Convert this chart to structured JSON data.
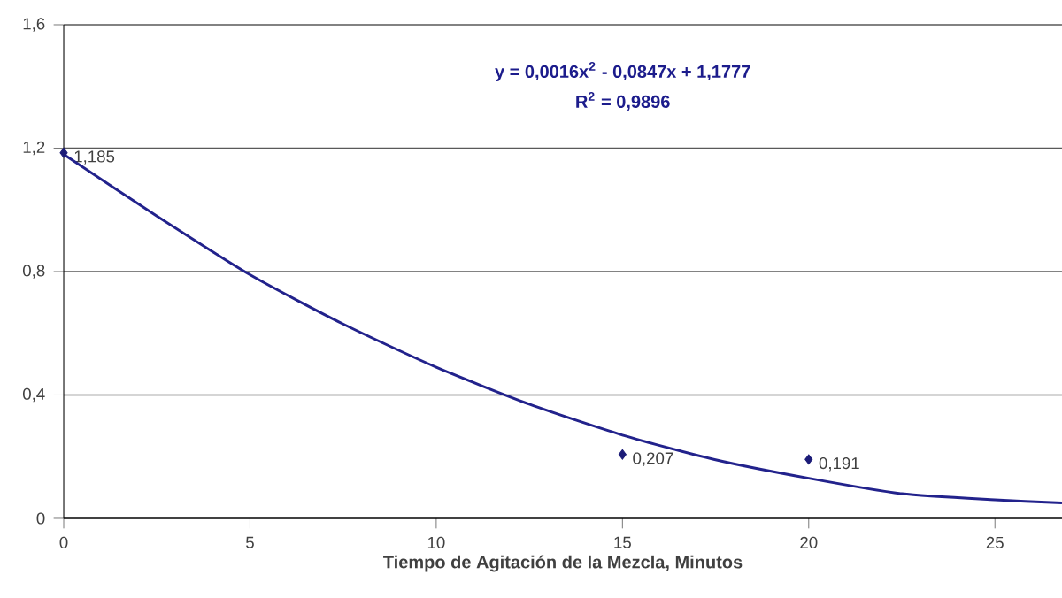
{
  "chart_data": {
    "type": "scatter",
    "xlabel": "Tiempo de Agitación de la Mezcla, Minutos",
    "annotations": [
      "y = 0,0016x$^{2}$ - 0,0847x + 1,1777",
      "R$^{2}$ = 0,9896"
    ],
    "series": [
      {
        "type": "scatter",
        "color": "#1c1c78",
        "x": [
          0,
          15,
          20
        ],
        "values": [
          1.185,
          0.207,
          0.191
        ],
        "value_labels": [
          "1,185",
          "0,207",
          "0,191"
        ],
        "marker": "diamond"
      },
      {
        "type": "line",
        "color": "#22228c",
        "x": [
          0,
          2.5,
          5,
          7.5,
          10,
          12.5,
          15,
          17.5,
          20,
          22.5,
          25,
          26.8
        ],
        "values": [
          1.18,
          0.98,
          0.79,
          0.63,
          0.49,
          0.37,
          0.27,
          0.19,
          0.13,
          0.08,
          0.06,
          0.05
        ],
        "marker": "none",
        "line_style": "solid"
      }
    ],
    "xlim": [
      0,
      26.8
    ],
    "ylim": [
      0,
      1.6
    ],
    "xticks": [
      0,
      5,
      10,
      15,
      20,
      25
    ],
    "yticks": [
      {
        "value": 0,
        "label": "0"
      },
      {
        "value": 0.4,
        "label": "0,4"
      },
      {
        "value": 0.8,
        "label": "0,8"
      },
      {
        "value": 1.2,
        "label": "1,2"
      },
      {
        "value": 1.6,
        "label": "1,6"
      }
    ],
    "grid": "y"
  }
}
